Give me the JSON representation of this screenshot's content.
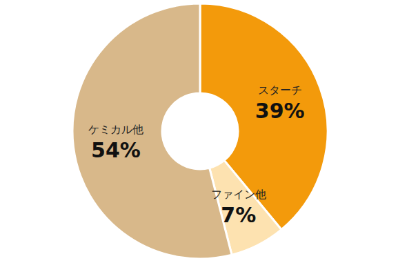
{
  "chart_data": {
    "type": "pie",
    "categories": [
      "スターチ",
      "ファイン他",
      "ケミカル他"
    ],
    "values": [
      39,
      7,
      54
    ],
    "value_labels": [
      "39%",
      "7%",
      "54%"
    ],
    "colors": [
      "#f39a0b",
      "#fde2b0",
      "#d8b88a"
    ],
    "data_labels": true
  }
}
